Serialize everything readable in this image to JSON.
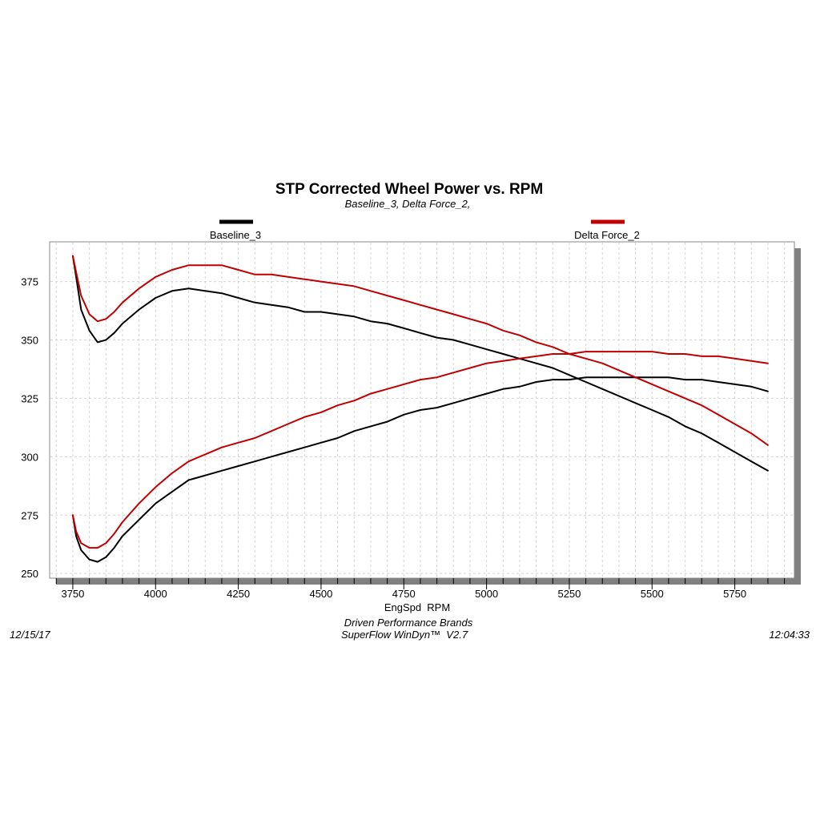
{
  "chart_data": {
    "type": "line",
    "title": "STP Corrected Wheel Power vs. RPM",
    "subtitle": "Baseline_3, Delta Force_2,",
    "xlabel": "EngSpd  RPM",
    "ylabel": "",
    "xlim": [
      3680,
      5930
    ],
    "ylim": [
      248,
      392
    ],
    "x_ticks": [
      3750,
      4000,
      4250,
      4500,
      4750,
      5000,
      5250,
      5500,
      5750
    ],
    "y_ticks": [
      250,
      275,
      300,
      325,
      350,
      375
    ],
    "grid": true,
    "legend_placement": "top",
    "series": [
      {
        "name": "Baseline_3",
        "color": "#000000",
        "upper": {
          "x": [
            3750,
            3760,
            3775,
            3800,
            3825,
            3850,
            3875,
            3900,
            3950,
            4000,
            4050,
            4100,
            4150,
            4200,
            4250,
            4300,
            4350,
            4400,
            4450,
            4500,
            4550,
            4600,
            4650,
            4700,
            4750,
            4800,
            4850,
            4900,
            4950,
            5000,
            5050,
            5100,
            5150,
            5200,
            5250,
            5300,
            5350,
            5400,
            5450,
            5500,
            5550,
            5600,
            5650,
            5700,
            5750,
            5800,
            5850
          ],
          "y": [
            386,
            377,
            363,
            354,
            349,
            350,
            353,
            357,
            363,
            368,
            371,
            372,
            371,
            370,
            368,
            366,
            365,
            364,
            362,
            362,
            361,
            360,
            358,
            357,
            355,
            353,
            351,
            350,
            348,
            346,
            344,
            342,
            340,
            338,
            335,
            332,
            329,
            326,
            323,
            320,
            317,
            313,
            310,
            306,
            302,
            298,
            294
          ]
        },
        "lower": {
          "x": [
            3750,
            3760,
            3775,
            3800,
            3825,
            3850,
            3875,
            3900,
            3950,
            4000,
            4050,
            4100,
            4150,
            4200,
            4250,
            4300,
            4350,
            4400,
            4450,
            4500,
            4550,
            4600,
            4650,
            4700,
            4750,
            4800,
            4850,
            4900,
            4950,
            5000,
            5050,
            5100,
            5150,
            5200,
            5250,
            5300,
            5350,
            5400,
            5450,
            5500,
            5550,
            5600,
            5650,
            5700,
            5750,
            5800,
            5850
          ],
          "y": [
            275,
            266,
            260,
            256,
            255,
            257,
            261,
            266,
            273,
            280,
            285,
            290,
            292,
            294,
            296,
            298,
            300,
            302,
            304,
            306,
            308,
            311,
            313,
            315,
            318,
            320,
            321,
            323,
            325,
            327,
            329,
            330,
            332,
            333,
            333,
            334,
            334,
            334,
            334,
            334,
            334,
            333,
            333,
            332,
            331,
            330,
            328
          ]
        }
      },
      {
        "name": "Delta Force_2",
        "color": "#c00000",
        "upper": {
          "x": [
            3750,
            3760,
            3775,
            3800,
            3825,
            3850,
            3875,
            3900,
            3950,
            4000,
            4050,
            4100,
            4150,
            4200,
            4250,
            4300,
            4350,
            4400,
            4450,
            4500,
            4550,
            4600,
            4650,
            4700,
            4750,
            4800,
            4850,
            4900,
            4950,
            5000,
            5050,
            5100,
            5150,
            5200,
            5250,
            5300,
            5350,
            5400,
            5450,
            5500,
            5550,
            5600,
            5650,
            5700,
            5750,
            5800,
            5850
          ],
          "y": [
            386,
            379,
            369,
            361,
            358,
            359,
            362,
            366,
            372,
            377,
            380,
            382,
            382,
            382,
            380,
            378,
            378,
            377,
            376,
            375,
            374,
            373,
            371,
            369,
            367,
            365,
            363,
            361,
            359,
            357,
            354,
            352,
            349,
            347,
            344,
            342,
            340,
            337,
            334,
            331,
            328,
            325,
            322,
            318,
            314,
            310,
            305
          ]
        },
        "lower": {
          "x": [
            3750,
            3760,
            3775,
            3800,
            3825,
            3850,
            3875,
            3900,
            3950,
            4000,
            4050,
            4100,
            4150,
            4200,
            4250,
            4300,
            4350,
            4400,
            4450,
            4500,
            4550,
            4600,
            4650,
            4700,
            4750,
            4800,
            4850,
            4900,
            4950,
            5000,
            5050,
            5100,
            5150,
            5200,
            5250,
            5300,
            5350,
            5400,
            5450,
            5500,
            5550,
            5600,
            5650,
            5700,
            5750,
            5800,
            5850
          ],
          "y": [
            275,
            268,
            263,
            261,
            261,
            263,
            267,
            272,
            280,
            287,
            293,
            298,
            301,
            304,
            306,
            308,
            311,
            314,
            317,
            319,
            322,
            324,
            327,
            329,
            331,
            333,
            334,
            336,
            338,
            340,
            341,
            342,
            343,
            344,
            344,
            345,
            345,
            345,
            345,
            345,
            344,
            344,
            343,
            343,
            342,
            341,
            340
          ]
        }
      }
    ]
  },
  "footer": {
    "left_date": "12/15/17",
    "center_line1": "Driven Performance Brands",
    "center_line2": "SuperFlow WinDyn™  V2.7",
    "right_time": "12:04:33"
  }
}
